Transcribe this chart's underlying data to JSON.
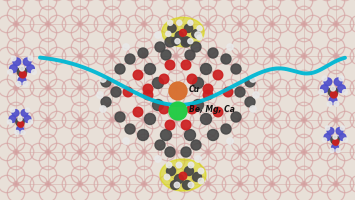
{
  "figsize": [
    3.55,
    2.0
  ],
  "dpi": 100,
  "bg_color": "#e8e0d8",
  "mof_ring_color": "#d4a0a0",
  "mof_line_color": "#c89090",
  "mof_center_color": "#c89898",
  "cyan_wave_color": "#00b8d4",
  "cyan_wave_lw": 2.8,
  "green_atom_color": "#22cc44",
  "orange_atom_color": "#d87030",
  "gray_dark": "#484848",
  "gray_med": "#606060",
  "red_atom": "#cc2020",
  "white_atom": "#e8e8e8",
  "yellow_bg": "#d8d800",
  "blue_dark": "#2828aa",
  "blue_med": "#5050cc",
  "blue_light": "#8888dd",
  "label_be_mg_ca": "Be, Mg, Ca",
  "label_cu": "Cu",
  "label_fs": 5.5
}
